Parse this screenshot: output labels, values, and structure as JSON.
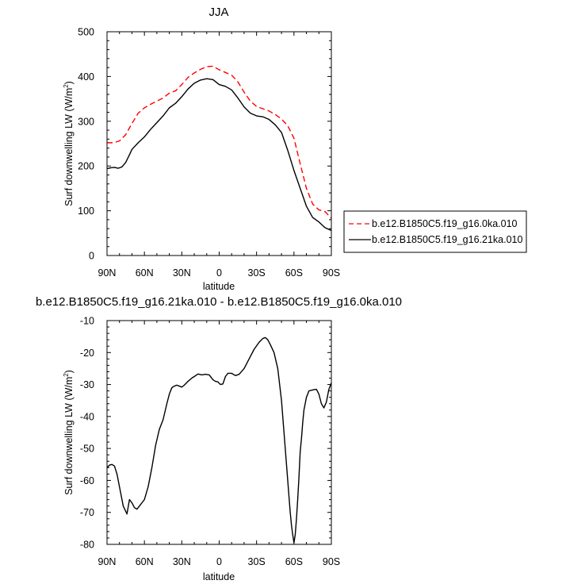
{
  "chart_data": [
    {
      "type": "line",
      "title": "JJA",
      "xlabel": "latitude",
      "ylabel": "Surf downwelling LW (W/m",
      "ylabel_sup": "2",
      "ylabel_close": ")",
      "xlim": [
        90,
        -90
      ],
      "ylim": [
        0,
        500
      ],
      "xticks": [
        90,
        60,
        30,
        0,
        -30,
        -60,
        -90
      ],
      "xtick_labels": [
        "90N",
        "60N",
        "30N",
        "0",
        "30S",
        "60S",
        "90S"
      ],
      "yticks": [
        0,
        100,
        200,
        300,
        400,
        500
      ],
      "ytick_labels": [
        "0",
        "100",
        "200",
        "300",
        "400",
        "500"
      ],
      "grid": false,
      "legend_position": "right",
      "series": [
        {
          "name": "b.e12.B1850C5.f19_g16.0ka.010",
          "color": "#ff0000",
          "dash": "dashed",
          "x": [
            90,
            85,
            80,
            75,
            70,
            65,
            60,
            55,
            50,
            45,
            40,
            35,
            30,
            25,
            20,
            15,
            10,
            5,
            0,
            -5,
            -10,
            -15,
            -20,
            -25,
            -30,
            -35,
            -40,
            -45,
            -50,
            -55,
            -60,
            -65,
            -70,
            -75,
            -80,
            -85,
            -90
          ],
          "y": [
            252,
            252,
            256,
            270,
            295,
            318,
            330,
            338,
            345,
            352,
            363,
            368,
            382,
            398,
            408,
            416,
            422,
            423,
            415,
            409,
            403,
            388,
            365,
            345,
            333,
            328,
            323,
            315,
            305,
            290,
            262,
            205,
            150,
            115,
            102,
            98,
            83
          ]
        },
        {
          "name": "b.e12.B1850C5.f19_g16.21ka.010",
          "color": "#000000",
          "dash": "solid",
          "x": [
            90,
            87,
            84,
            81,
            78,
            75,
            72,
            70,
            65,
            60,
            55,
            50,
            45,
            40,
            35,
            30,
            25,
            20,
            15,
            10,
            5,
            0,
            -5,
            -10,
            -15,
            -20,
            -25,
            -30,
            -35,
            -40,
            -45,
            -50,
            -55,
            -60,
            -65,
            -70,
            -75,
            -80,
            -85,
            -90
          ],
          "y": [
            194,
            196,
            197,
            195,
            198,
            208,
            225,
            237,
            252,
            265,
            282,
            297,
            312,
            330,
            340,
            355,
            372,
            385,
            392,
            395,
            393,
            382,
            378,
            370,
            352,
            332,
            318,
            312,
            310,
            304,
            292,
            275,
            235,
            190,
            150,
            110,
            85,
            75,
            62,
            56
          ]
        }
      ]
    },
    {
      "type": "line",
      "title": "b.e12.B1850C5.f19_g16.21ka.010 - b.e12.B1850C5.f19_g16.0ka.010",
      "xlabel": "latitude",
      "ylabel": "Surf downwelling LW (W/m",
      "ylabel_sup": "2",
      "ylabel_close": ")",
      "xlim": [
        90,
        -90
      ],
      "ylim": [
        -80,
        -10
      ],
      "xticks": [
        90,
        60,
        30,
        0,
        -30,
        -60,
        -90
      ],
      "xtick_labels": [
        "90N",
        "60N",
        "30N",
        "0",
        "30S",
        "60S",
        "90S"
      ],
      "yticks": [
        -80,
        -70,
        -60,
        -50,
        -40,
        -30,
        -20,
        -10
      ],
      "ytick_labels": [
        "-80",
        "-70",
        "-60",
        "-50",
        "-40",
        "-30",
        "-20",
        "-10"
      ],
      "grid": false,
      "series": [
        {
          "color": "#000000",
          "dash": "solid",
          "x": [
            90,
            88,
            86,
            84,
            82,
            80,
            77,
            74,
            72,
            70,
            68,
            66,
            64,
            62,
            60,
            57,
            54,
            51,
            48,
            45,
            42,
            40,
            38,
            36,
            34,
            32,
            30,
            28,
            25,
            22,
            20,
            17,
            14,
            11,
            8,
            5,
            3,
            1,
            -1,
            -3,
            -5,
            -7,
            -10,
            -13,
            -16,
            -20,
            -24,
            -28,
            -32,
            -35,
            -37,
            -39,
            -41,
            -44,
            -47,
            -50,
            -52,
            -54,
            -56,
            -57,
            -58,
            -59,
            -60,
            -61,
            -62,
            -63,
            -64,
            -65,
            -66,
            -67,
            -68,
            -70,
            -72,
            -74,
            -76,
            -78,
            -80,
            -82,
            -84,
            -86,
            -88,
            -90
          ],
          "y": [
            -56,
            -55.2,
            -55,
            -55.5,
            -58,
            -62,
            -68,
            -70.5,
            -66,
            -67,
            -68.5,
            -69,
            -68,
            -67,
            -66,
            -62,
            -56,
            -49,
            -44,
            -41,
            -36,
            -33,
            -31,
            -30.5,
            -30.2,
            -30.5,
            -30.8,
            -30.2,
            -29,
            -28,
            -27.5,
            -26.7,
            -27,
            -26.8,
            -27,
            -28.5,
            -29,
            -29.2,
            -30,
            -29.8,
            -27.5,
            -26.5,
            -26.5,
            -27.2,
            -26.8,
            -25,
            -22,
            -19,
            -16.8,
            -15.6,
            -15.3,
            -16,
            -17.5,
            -20,
            -25,
            -35,
            -45,
            -55,
            -65,
            -70,
            -74,
            -77,
            -79.5,
            -77,
            -72,
            -66,
            -59,
            -51,
            -47,
            -42,
            -38,
            -34,
            -32,
            -31.8,
            -31.6,
            -31.5,
            -33,
            -36,
            -37.3,
            -35.5,
            -31.5,
            -29.5
          ]
        }
      ]
    }
  ]
}
